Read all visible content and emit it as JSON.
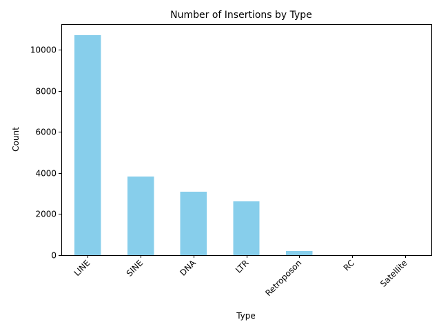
{
  "chart_data": {
    "type": "bar",
    "title": "Number of Insertions by Type",
    "xlabel": "Type",
    "ylabel": "Count",
    "categories": [
      "LINE",
      "SINE",
      "DNA",
      "LTR",
      "Retroposon",
      "RC",
      "Satellite"
    ],
    "values": [
      10720,
      3830,
      3090,
      2620,
      200,
      5,
      3
    ],
    "ylim": [
      0,
      11250
    ],
    "yticks": [
      0,
      2000,
      4000,
      6000,
      8000,
      10000
    ],
    "grid": false,
    "legend": "none",
    "bar_color": "#87ceeb"
  }
}
